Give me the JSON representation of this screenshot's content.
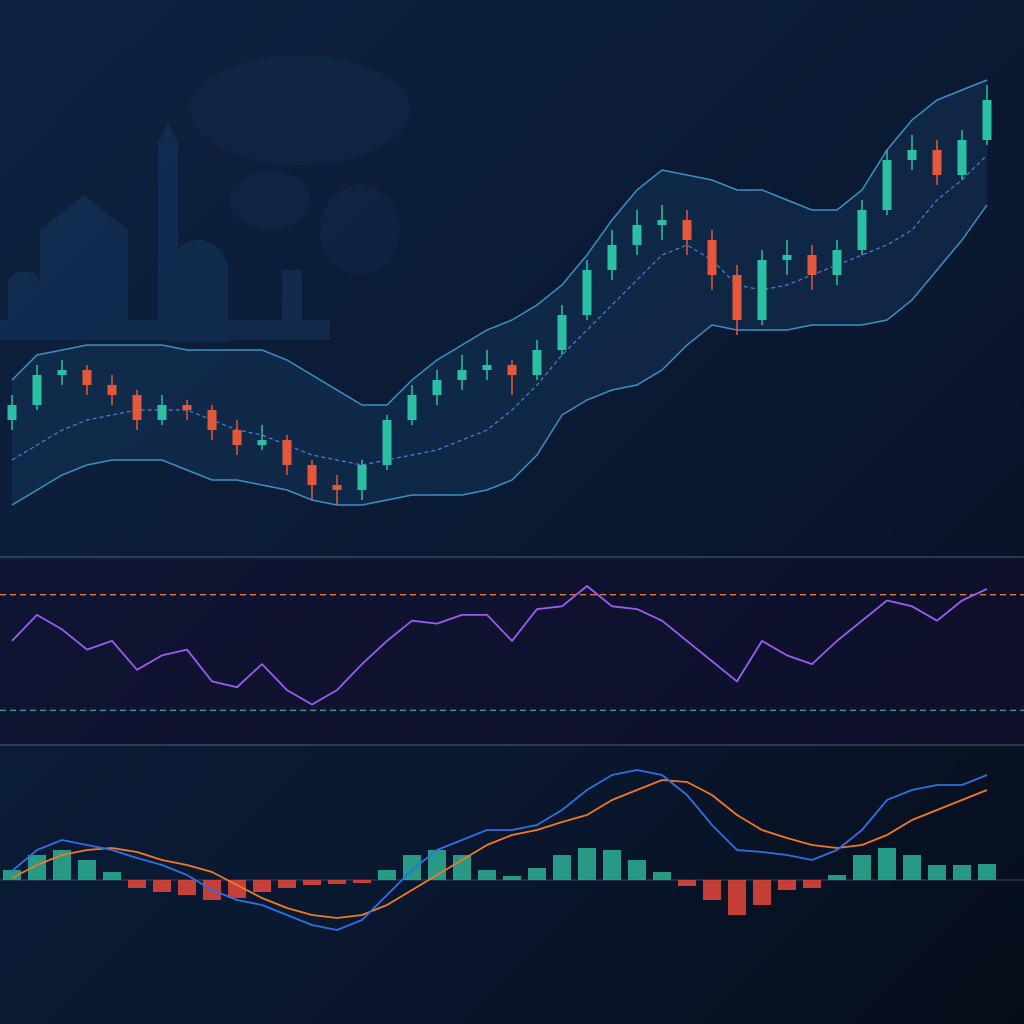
{
  "chart_data": [
    {
      "type": "candlestick",
      "open": [
        24,
        27,
        33,
        34,
        31,
        29,
        24,
        27,
        26,
        22,
        19,
        20,
        15,
        11,
        10,
        15,
        24,
        29,
        32,
        34,
        35,
        33,
        38,
        45,
        54,
        59,
        63,
        64,
        60,
        53,
        44,
        56,
        57,
        53,
        58,
        66,
        76,
        78,
        73,
        80
      ],
      "high": [
        29,
        35,
        36,
        35,
        33,
        30,
        29,
        28,
        27,
        24,
        23,
        21,
        16,
        13,
        16,
        25,
        31,
        34,
        37,
        38,
        36,
        40,
        47,
        56,
        62,
        66,
        67,
        66,
        62,
        55,
        58,
        60,
        59,
        60,
        68,
        78,
        81,
        80,
        82,
        91
      ],
      "low": [
        22,
        26,
        31,
        29,
        27,
        22,
        23,
        24,
        20,
        17,
        18,
        13,
        8,
        7,
        8,
        14,
        23,
        27,
        30,
        32,
        29,
        32,
        37,
        44,
        52,
        57,
        60,
        57,
        50,
        41,
        43,
        53,
        50,
        51,
        57,
        65,
        74,
        71,
        72,
        79
      ],
      "close": [
        27,
        33,
        34,
        31,
        29,
        24,
        27,
        26,
        22,
        19,
        20,
        15,
        11,
        10,
        15,
        24,
        29,
        32,
        34,
        35,
        33,
        38,
        45,
        54,
        59,
        63,
        64,
        60,
        53,
        44,
        56,
        57,
        53,
        58,
        66,
        76,
        78,
        73,
        80,
        88
      ],
      "up_color": "#2bbfa4",
      "down_color": "#e5573a",
      "bands": {
        "upper": [
          32,
          37,
          38,
          39,
          39,
          39,
          39,
          38,
          38,
          38,
          38,
          36,
          33,
          30,
          27,
          27,
          32,
          36,
          39,
          42,
          44,
          47,
          51,
          57,
          64,
          70,
          74,
          73,
          72,
          70,
          70,
          68,
          66,
          66,
          70,
          78,
          84,
          88,
          90,
          92
        ],
        "middle": [
          16,
          19,
          22,
          24,
          25,
          26,
          26,
          26,
          24,
          22,
          21,
          19,
          17,
          16,
          15,
          16,
          17,
          18,
          20,
          22,
          26,
          31,
          37,
          42,
          47,
          52,
          57,
          59,
          56,
          51,
          50,
          51,
          53,
          55,
          57,
          59,
          62,
          68,
          72,
          77
        ],
        "lower": [
          7,
          10,
          13,
          15,
          16,
          16,
          16,
          14,
          12,
          12,
          11,
          10,
          8,
          7,
          7,
          8,
          9,
          9,
          9,
          10,
          12,
          17,
          25,
          28,
          30,
          31,
          34,
          39,
          43,
          42,
          42,
          42,
          43,
          43,
          43,
          44,
          48,
          54,
          60,
          67
        ],
        "color": "#3d8fc4",
        "middle_color": "#4d7fd8"
      },
      "ylim": [
        0,
        108
      ]
    },
    {
      "type": "line",
      "values": [
        54,
        63,
        58,
        51,
        54,
        44,
        49,
        51,
        40,
        38,
        46,
        37,
        32,
        37,
        46,
        54,
        61,
        60,
        63,
        63,
        54,
        65,
        66,
        73,
        66,
        65,
        61,
        54,
        47,
        40,
        54,
        49,
        46,
        54,
        61,
        68,
        66,
        61,
        68,
        72
      ],
      "color": "#9a5cf2",
      "reference_lines": [
        {
          "value": 70,
          "color": "#e07b39"
        },
        {
          "value": 30,
          "color": "#2a9d8f"
        }
      ],
      "ylim": [
        18,
        82
      ]
    },
    {
      "type": "macd",
      "histogram": [
        1.0,
        2.5,
        3.0,
        2.0,
        0.8,
        -0.8,
        -1.2,
        -1.5,
        -2.0,
        -1.8,
        -1.2,
        -0.8,
        -0.5,
        -0.4,
        -0.3,
        1.0,
        2.5,
        3.0,
        2.5,
        1.0,
        0.4,
        1.2,
        2.5,
        3.2,
        3.0,
        2.0,
        0.8,
        -0.6,
        -2.0,
        -3.5,
        -2.5,
        -1.0,
        -0.8,
        0.5,
        2.5,
        3.2,
        2.5,
        1.5,
        1.5,
        1.6
      ],
      "macd": [
        0.9,
        3.0,
        4.0,
        3.5,
        3.0,
        2.2,
        1.5,
        0.5,
        -1.0,
        -2.0,
        -2.5,
        -3.5,
        -4.5,
        -5.0,
        -4.0,
        -1.5,
        1.0,
        3.0,
        4.0,
        5.0,
        5.0,
        5.5,
        7.0,
        9.0,
        10.5,
        11.0,
        10.5,
        8.5,
        5.5,
        3.0,
        2.8,
        2.5,
        2.0,
        3.0,
        5.0,
        8.0,
        9.0,
        9.5,
        9.5,
        10.5
      ],
      "signal": [
        0.2,
        1.5,
        2.5,
        3.0,
        3.2,
        2.8,
        2.0,
        1.5,
        0.8,
        -0.5,
        -1.8,
        -2.8,
        -3.5,
        -3.8,
        -3.5,
        -2.5,
        -1.0,
        0.5,
        2.0,
        3.5,
        4.5,
        5.0,
        5.8,
        6.5,
        8.0,
        9.0,
        10.0,
        9.8,
        8.5,
        6.5,
        5.0,
        4.2,
        3.5,
        3.2,
        3.5,
        4.5,
        6.0,
        7.0,
        8.0,
        9.0
      ],
      "up_color": "#2aa88f",
      "down_color": "#d9453a",
      "macd_color": "#2f6fe0",
      "signal_color": "#f07a20",
      "ylim": [
        -14,
        12
      ]
    }
  ]
}
